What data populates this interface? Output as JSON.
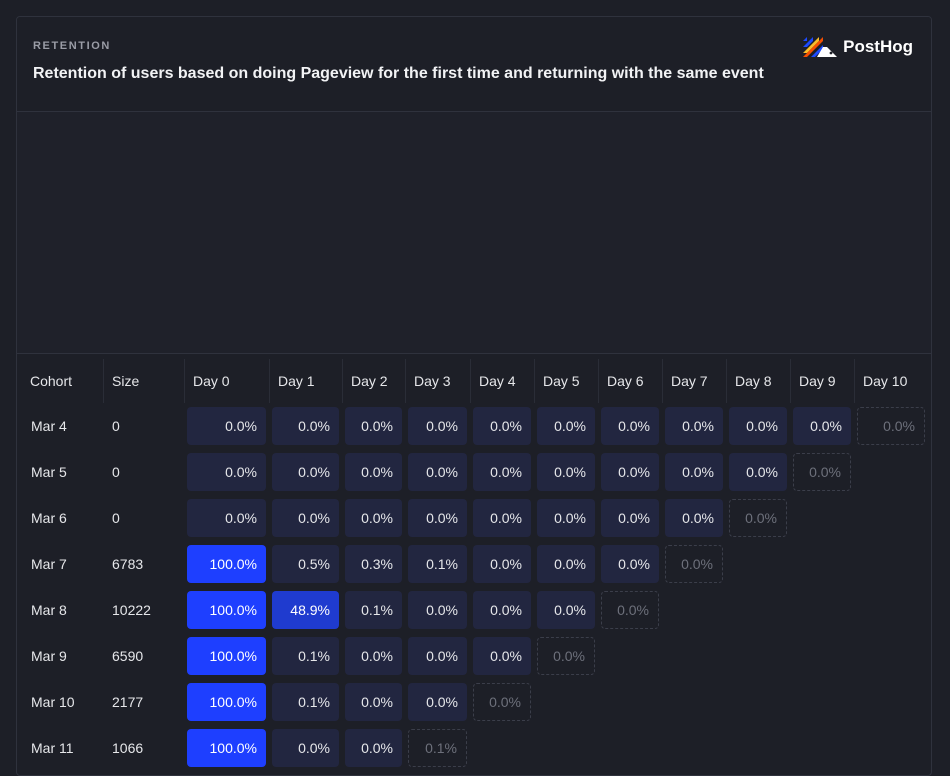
{
  "header": {
    "eyebrow": "RETENTION",
    "title": "Retention of users based on doing Pageview for the first time and returning with the same event",
    "logo_text": "PostHog"
  },
  "colors": {
    "background": "#1d1f27",
    "cell_low": "#222640",
    "cell_mid": "#1f3bcf",
    "cell_high": "#1e3fff"
  },
  "table": {
    "columns": [
      "Cohort",
      "Size",
      "Day 0",
      "Day 1",
      "Day 2",
      "Day 3",
      "Day 4",
      "Day 5",
      "Day 6",
      "Day 7",
      "Day 8",
      "Day 9",
      "Day 10"
    ],
    "rows": [
      {
        "cohort": "Mar 4",
        "size": "0",
        "cells": [
          "0.0%",
          "0.0%",
          "0.0%",
          "0.0%",
          "0.0%",
          "0.0%",
          "0.0%",
          "0.0%",
          "0.0%",
          "0.0%",
          "0.0%"
        ]
      },
      {
        "cohort": "Mar 5",
        "size": "0",
        "cells": [
          "0.0%",
          "0.0%",
          "0.0%",
          "0.0%",
          "0.0%",
          "0.0%",
          "0.0%",
          "0.0%",
          "0.0%",
          "0.0%"
        ]
      },
      {
        "cohort": "Mar 6",
        "size": "0",
        "cells": [
          "0.0%",
          "0.0%",
          "0.0%",
          "0.0%",
          "0.0%",
          "0.0%",
          "0.0%",
          "0.0%",
          "0.0%"
        ]
      },
      {
        "cohort": "Mar 7",
        "size": "6783",
        "cells": [
          "100.0%",
          "0.5%",
          "0.3%",
          "0.1%",
          "0.0%",
          "0.0%",
          "0.0%",
          "0.0%"
        ]
      },
      {
        "cohort": "Mar 8",
        "size": "10222",
        "cells": [
          "100.0%",
          "48.9%",
          "0.1%",
          "0.0%",
          "0.0%",
          "0.0%",
          "0.0%"
        ]
      },
      {
        "cohort": "Mar 9",
        "size": "6590",
        "cells": [
          "100.0%",
          "0.1%",
          "0.0%",
          "0.0%",
          "0.0%",
          "0.0%"
        ]
      },
      {
        "cohort": "Mar 10",
        "size": "2177",
        "cells": [
          "100.0%",
          "0.1%",
          "0.0%",
          "0.0%",
          "0.0%"
        ]
      },
      {
        "cohort": "Mar 11",
        "size": "1066",
        "cells": [
          "100.0%",
          "0.0%",
          "0.0%",
          "0.1%"
        ]
      }
    ]
  }
}
